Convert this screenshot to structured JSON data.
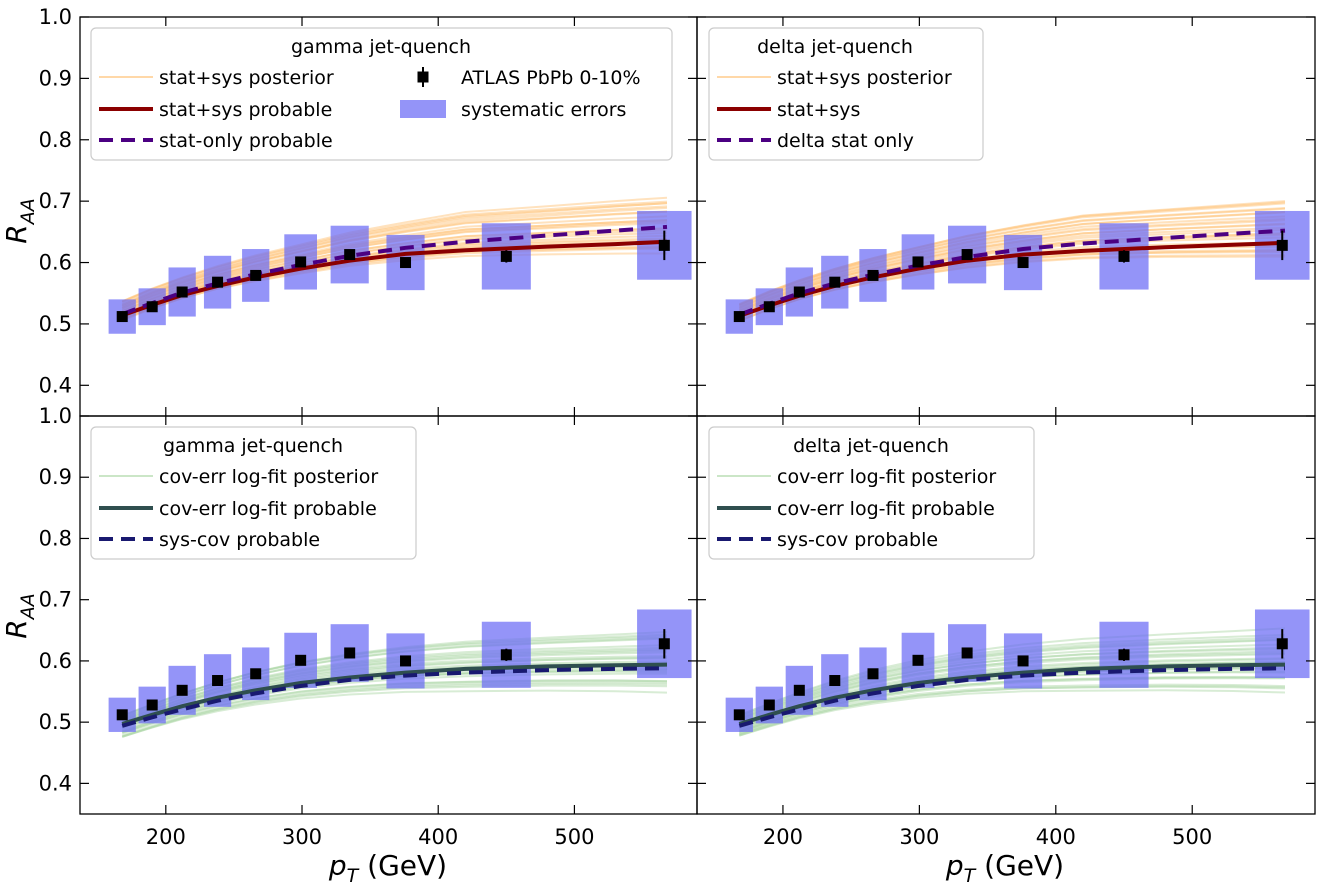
{
  "chart_data": {
    "type": "line",
    "shared": {
      "xlabel": "p_T (GeV)",
      "xlabel_var": "p",
      "xlabel_sub": "T",
      "xlabel_unit": " (GeV)",
      "ylabel": "R_AA",
      "ylabel_var": "R",
      "ylabel_sub": "AA",
      "xlim": [
        137,
        590
      ],
      "ylim": [
        0.35,
        1.0
      ],
      "xticks": [
        200,
        300,
        400,
        500
      ],
      "yticks": [
        0.4,
        0.5,
        0.6,
        0.7,
        0.8,
        0.9,
        1.0
      ],
      "ytick_labels": [
        "0.4",
        "0.5",
        "0.6",
        "0.7",
        "0.8",
        "0.9",
        "1.0"
      ]
    },
    "atlas_data": {
      "name": "ATLAS PbPb 0-10%",
      "x": [
        168,
        190,
        212,
        238,
        266,
        299,
        335,
        376,
        450,
        566
      ],
      "y": [
        0.512,
        0.528,
        0.552,
        0.568,
        0.579,
        0.601,
        0.613,
        0.6,
        0.61,
        0.628
      ],
      "stat_err": [
        0.006,
        0.006,
        0.006,
        0.006,
        0.006,
        0.007,
        0.008,
        0.008,
        0.01,
        0.024
      ],
      "sys_err": [
        0.028,
        0.03,
        0.04,
        0.043,
        0.043,
        0.045,
        0.047,
        0.045,
        0.054,
        0.056
      ],
      "bin_halfwidth": [
        10,
        10,
        10,
        10,
        10,
        12,
        14,
        14,
        18,
        20
      ]
    },
    "panels": [
      {
        "id": "top-left",
        "legend_title": "gamma jet-quench",
        "legend_entries": [
          "stat+sys posterior",
          "stat+sys probable",
          "stat-only probable",
          "ATLAS PbPb 0-10%",
          "systematic errors"
        ],
        "posterior_color": "#ffbe6e",
        "posterior_center": [
          0.521,
          0.541,
          0.558,
          0.575,
          0.59,
          0.605,
          0.621,
          0.634,
          0.646,
          0.652,
          0.657,
          0.66
        ],
        "posterior_spread": [
          0.025,
          0.025,
          0.025,
          0.026,
          0.028,
          0.03,
          0.033,
          0.036,
          0.04,
          0.042,
          0.044,
          0.045
        ],
        "x_grid": [
          168,
          190,
          212,
          238,
          266,
          299,
          335,
          376,
          420,
          480,
          530,
          568
        ],
        "series": [
          {
            "name": "stat+sys probable",
            "color": "#8b0000",
            "dash": "",
            "width": 4,
            "y": [
              0.514,
              0.531,
              0.547,
              0.562,
              0.576,
              0.59,
              0.603,
              0.614,
              0.62,
              0.626,
              0.63,
              0.634
            ]
          },
          {
            "name": "stat-only probable",
            "color": "#4b0082",
            "dash": "14,8",
            "width": 4,
            "y": [
              0.516,
              0.534,
              0.551,
              0.566,
              0.581,
              0.596,
              0.611,
              0.624,
              0.634,
              0.644,
              0.652,
              0.658
            ]
          }
        ]
      },
      {
        "id": "top-right",
        "legend_title": "delta jet-quench",
        "legend_entries": [
          "stat+sys posterior",
          "stat+sys",
          "delta stat only"
        ],
        "posterior_color": "#ffbe6e",
        "posterior_center": [
          0.519,
          0.539,
          0.556,
          0.573,
          0.588,
          0.603,
          0.618,
          0.631,
          0.642,
          0.648,
          0.652,
          0.655
        ],
        "posterior_spread": [
          0.025,
          0.025,
          0.025,
          0.026,
          0.028,
          0.03,
          0.033,
          0.036,
          0.04,
          0.042,
          0.044,
          0.045
        ],
        "x_grid": [
          168,
          190,
          212,
          238,
          266,
          299,
          335,
          376,
          420,
          480,
          530,
          568
        ],
        "series": [
          {
            "name": "stat+sys",
            "color": "#8b0000",
            "dash": "",
            "width": 4,
            "y": [
              0.513,
              0.53,
              0.546,
              0.562,
              0.576,
              0.59,
              0.603,
              0.613,
              0.619,
              0.625,
              0.629,
              0.632
            ]
          },
          {
            "name": "delta stat only",
            "color": "#4b0082",
            "dash": "14,8",
            "width": 4,
            "y": [
              0.515,
              0.533,
              0.55,
              0.566,
              0.58,
              0.595,
              0.609,
              0.622,
              0.631,
              0.64,
              0.647,
              0.652
            ]
          }
        ]
      },
      {
        "id": "bottom-left",
        "legend_title": "gamma jet-quench",
        "legend_entries": [
          "cov-err log-fit posterior",
          "cov-err log-fit probable",
          "sys-cov probable"
        ],
        "posterior_color": "#a8d5a2",
        "posterior_center": [
          0.494,
          0.511,
          0.527,
          0.543,
          0.557,
          0.57,
          0.58,
          0.588,
          0.593,
          0.597,
          0.599,
          0.6
        ],
        "posterior_spread": [
          0.03,
          0.031,
          0.032,
          0.034,
          0.036,
          0.038,
          0.04,
          0.042,
          0.044,
          0.045,
          0.046,
          0.047
        ],
        "x_grid": [
          168,
          190,
          212,
          238,
          266,
          299,
          335,
          376,
          420,
          480,
          530,
          568
        ],
        "series": [
          {
            "name": "cov-err log-fit probable",
            "color": "#2f4f4f",
            "dash": "",
            "width": 4,
            "y": [
              0.497,
              0.512,
              0.526,
              0.54,
              0.552,
              0.564,
              0.573,
              0.581,
              0.587,
              0.591,
              0.593,
              0.594
            ]
          },
          {
            "name": "sys-cov probable",
            "color": "#191970",
            "dash": "14,8",
            "width": 4,
            "y": [
              0.494,
              0.508,
              0.521,
              0.535,
              0.547,
              0.559,
              0.569,
              0.576,
              0.581,
              0.585,
              0.587,
              0.588
            ]
          }
        ]
      },
      {
        "id": "bottom-right",
        "legend_title": "delta jet-quench",
        "legend_entries": [
          "cov-err log-fit posterior",
          "cov-err log-fit probable",
          "sys-cov probable"
        ],
        "posterior_color": "#a8d5a2",
        "posterior_center": [
          0.494,
          0.511,
          0.527,
          0.543,
          0.557,
          0.57,
          0.58,
          0.588,
          0.593,
          0.597,
          0.599,
          0.6
        ],
        "posterior_spread": [
          0.03,
          0.031,
          0.032,
          0.034,
          0.036,
          0.038,
          0.04,
          0.042,
          0.044,
          0.045,
          0.046,
          0.047
        ],
        "x_grid": [
          168,
          190,
          212,
          238,
          266,
          299,
          335,
          376,
          420,
          480,
          530,
          568
        ],
        "series": [
          {
            "name": "cov-err log-fit probable",
            "color": "#2f4f4f",
            "dash": "",
            "width": 4,
            "y": [
              0.497,
              0.512,
              0.526,
              0.54,
              0.552,
              0.564,
              0.573,
              0.581,
              0.587,
              0.591,
              0.593,
              0.594
            ]
          },
          {
            "name": "sys-cov probable",
            "color": "#191970",
            "dash": "14,8",
            "width": 4,
            "y": [
              0.494,
              0.508,
              0.521,
              0.535,
              0.547,
              0.559,
              0.569,
              0.576,
              0.581,
              0.585,
              0.587,
              0.588
            ]
          }
        ]
      }
    ],
    "band_color": "#6b6bf5",
    "marker_color": "#000000"
  }
}
